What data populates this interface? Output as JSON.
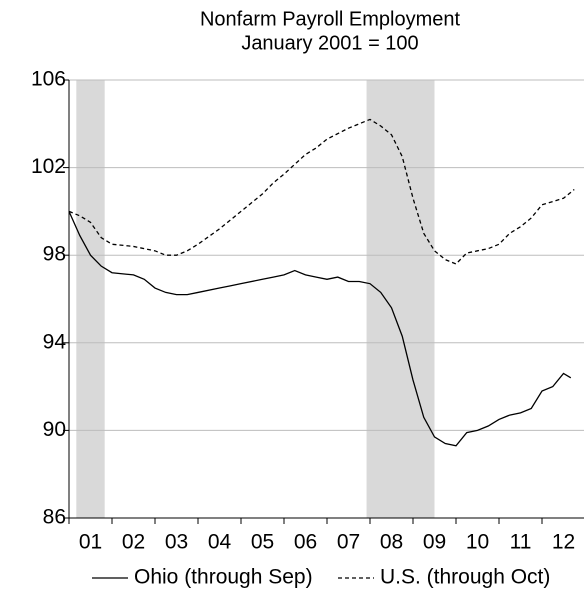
{
  "chart_data": {
    "type": "line",
    "title": "Nonfarm Payroll Employment",
    "subtitle": "January 2001 = 100",
    "xlim": [
      2001,
      2013
    ],
    "xticks": [
      {
        "value": 2001.5,
        "label": "01"
      },
      {
        "value": 2002.5,
        "label": "02"
      },
      {
        "value": 2003.5,
        "label": "03"
      },
      {
        "value": 2004.5,
        "label": "04"
      },
      {
        "value": 2005.5,
        "label": "05"
      },
      {
        "value": 2006.5,
        "label": "06"
      },
      {
        "value": 2007.5,
        "label": "07"
      },
      {
        "value": 2008.5,
        "label": "08"
      },
      {
        "value": 2009.5,
        "label": "09"
      },
      {
        "value": 2010.5,
        "label": "10"
      },
      {
        "value": 2011.5,
        "label": "11"
      },
      {
        "value": 2012.5,
        "label": "12"
      }
    ],
    "ylim": [
      86,
      106
    ],
    "yticks": [
      86,
      90,
      94,
      98,
      102,
      106
    ],
    "grid": true,
    "recessions": [
      [
        2001.17,
        2001.83
      ],
      [
        2007.92,
        2009.5
      ]
    ],
    "recession_color": "#d9d9d9",
    "legend": "bottom",
    "series": [
      {
        "name": "Ohio (through Sep)",
        "color": "#000000",
        "line_style": "solid",
        "x": [
          2001.0,
          2001.25,
          2001.5,
          2001.75,
          2002.0,
          2002.5,
          2002.75,
          2003.0,
          2003.25,
          2003.5,
          2003.75,
          2004.0,
          2004.5,
          2004.75,
          2005.0,
          2005.5,
          2005.75,
          2006.0,
          2006.25,
          2006.5,
          2006.75,
          2007.0,
          2007.25,
          2007.5,
          2007.75,
          2008.0,
          2008.25,
          2008.5,
          2008.75,
          2009.0,
          2009.25,
          2009.5,
          2009.75,
          2010.0,
          2010.25,
          2010.5,
          2010.75,
          2011.0,
          2011.25,
          2011.5,
          2011.75,
          2012.0,
          2012.25,
          2012.5,
          2012.67
        ],
        "values": [
          100,
          98.9,
          98.0,
          97.5,
          97.2,
          97.1,
          96.9,
          96.5,
          96.3,
          96.2,
          96.2,
          96.3,
          96.5,
          96.6,
          96.7,
          96.9,
          97.0,
          97.1,
          97.3,
          97.1,
          97.0,
          96.9,
          97.0,
          96.8,
          96.8,
          96.7,
          96.3,
          95.6,
          94.3,
          92.3,
          90.6,
          89.7,
          89.4,
          89.3,
          89.9,
          90.0,
          90.2,
          90.5,
          90.7,
          90.8,
          91.0,
          91.8,
          92.0,
          92.6,
          92.4
        ]
      },
      {
        "name": "U.S. (through Oct)",
        "color": "#000000",
        "line_style": "dashed",
        "x": [
          2001.0,
          2001.25,
          2001.5,
          2001.75,
          2002.0,
          2002.5,
          2002.75,
          2003.0,
          2003.25,
          2003.5,
          2003.75,
          2004.0,
          2004.5,
          2004.75,
          2005.0,
          2005.5,
          2005.75,
          2006.0,
          2006.5,
          2006.75,
          2007.0,
          2007.5,
          2007.75,
          2008.0,
          2008.25,
          2008.5,
          2008.75,
          2009.0,
          2009.25,
          2009.5,
          2009.75,
          2010.0,
          2010.25,
          2010.5,
          2010.75,
          2011.0,
          2011.25,
          2011.5,
          2011.75,
          2012.0,
          2012.5,
          2012.75
        ],
        "values": [
          100,
          99.8,
          99.5,
          98.8,
          98.5,
          98.4,
          98.3,
          98.2,
          98.0,
          98.0,
          98.2,
          98.5,
          99.2,
          99.6,
          100.0,
          100.8,
          101.3,
          101.7,
          102.6,
          102.9,
          103.3,
          103.8,
          104.0,
          104.2,
          103.9,
          103.5,
          102.5,
          100.6,
          99.0,
          98.2,
          97.8,
          97.6,
          98.1,
          98.2,
          98.3,
          98.5,
          99.0,
          99.3,
          99.7,
          100.3,
          100.6,
          101.0
        ]
      }
    ]
  }
}
